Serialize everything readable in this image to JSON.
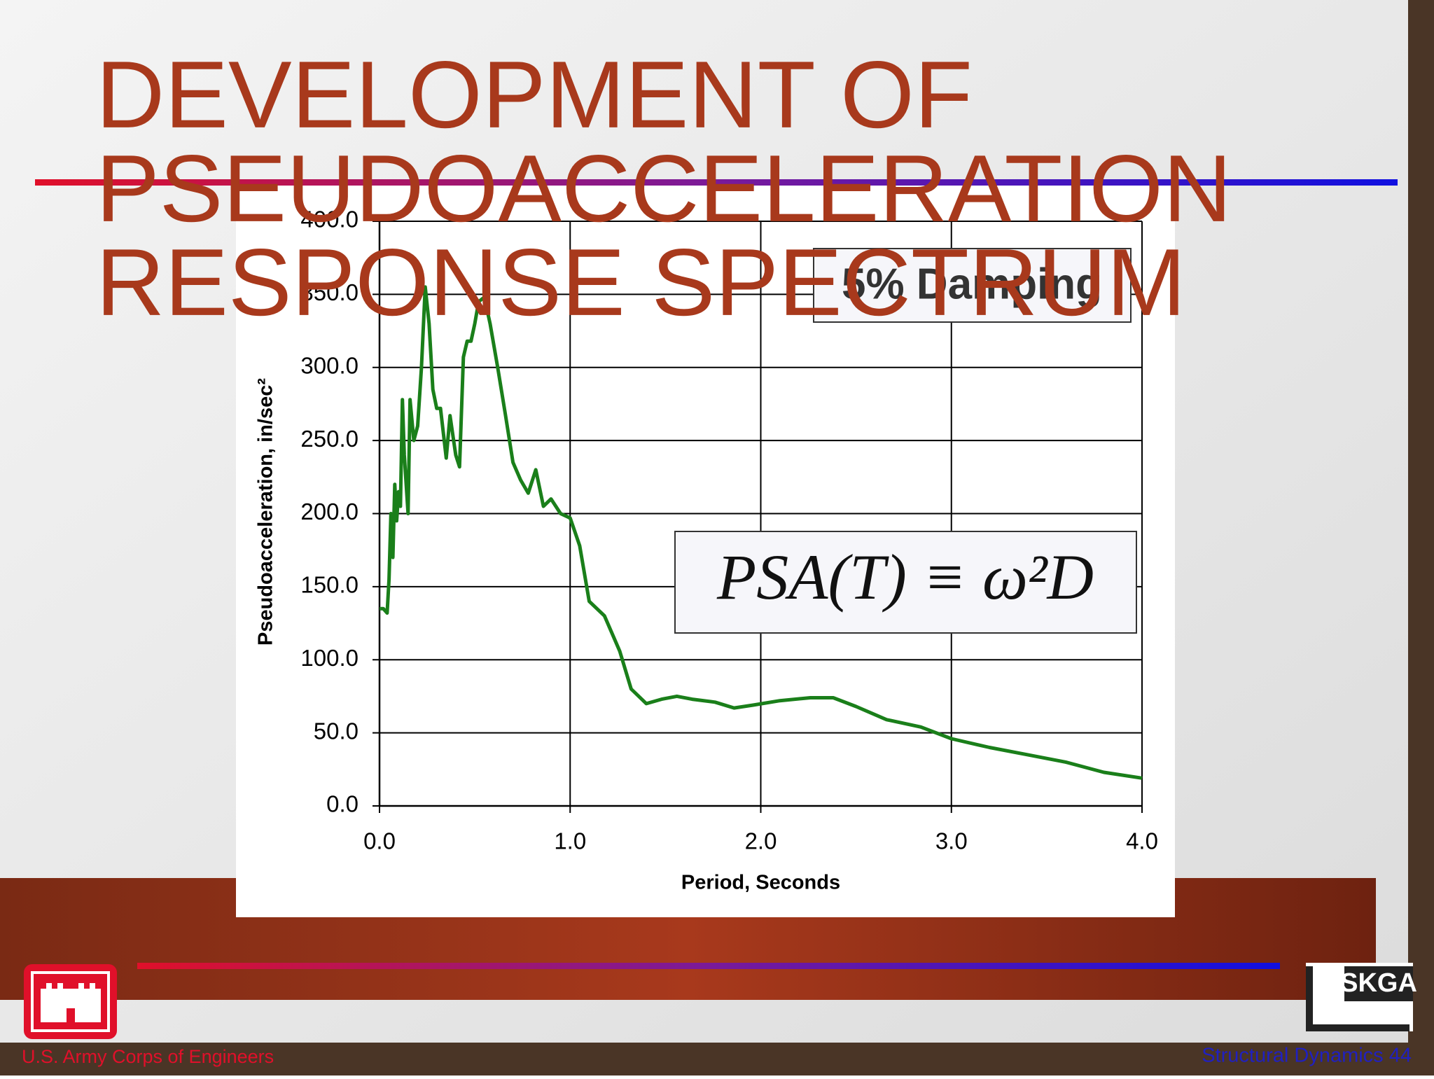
{
  "slide": {
    "title": [
      "DEVELOPMENT OF",
      "PSEUDOACCELERATION",
      "RESPONSE SPECTRUM"
    ],
    "footer_left": "U.S. Army Corps of Engineers",
    "footer_right": "Structural Dynamics 44",
    "logo_text": "SKGA"
  },
  "chart_data": {
    "type": "line",
    "x_label": "Period, Seconds",
    "y_label": "Pseudoacceleration, in/sec²",
    "annotations": [
      "5% Damping",
      "PSA(T) ≡ ω²D"
    ],
    "x": [
      0.0,
      0.02,
      0.04,
      0.05,
      0.06,
      0.07,
      0.08,
      0.09,
      0.1,
      0.11,
      0.12,
      0.13,
      0.15,
      0.16,
      0.18,
      0.2,
      0.22,
      0.24,
      0.26,
      0.28,
      0.3,
      0.32,
      0.35,
      0.37,
      0.4,
      0.42,
      0.44,
      0.46,
      0.48,
      0.5,
      0.52,
      0.55,
      0.58,
      0.62,
      0.66,
      0.7,
      0.74,
      0.78,
      0.82,
      0.86,
      0.9,
      0.95,
      1.0,
      1.05,
      1.1,
      1.18,
      1.26,
      1.32,
      1.4,
      1.48,
      1.56,
      1.64,
      1.76,
      1.86,
      1.96,
      2.1,
      2.26,
      2.38,
      2.5,
      2.66,
      2.84,
      3.0,
      3.2,
      3.4,
      3.6,
      3.8,
      4.0
    ],
    "values": [
      135,
      135,
      132,
      155,
      200,
      170,
      220,
      195,
      215,
      205,
      278,
      240,
      200,
      278,
      250,
      260,
      300,
      355,
      330,
      285,
      272,
      272,
      238,
      267,
      240,
      232,
      307,
      318,
      318,
      330,
      345,
      348,
      330,
      300,
      268,
      235,
      223,
      214,
      230,
      205,
      210,
      200,
      197,
      178,
      140,
      130,
      106,
      80,
      70,
      73,
      75,
      73,
      71,
      67,
      69,
      72,
      74,
      74,
      68,
      59,
      54,
      46,
      40,
      35,
      30,
      23,
      19
    ],
    "color": "#1a7f1a",
    "xlim": [
      0,
      4
    ],
    "ylim": [
      0,
      400
    ],
    "xticks": [
      {
        "value": 0,
        "label": "0.0"
      },
      {
        "value": 1,
        "label": "1.0"
      },
      {
        "value": 2,
        "label": "2.0"
      },
      {
        "value": 3,
        "label": "3.0"
      },
      {
        "value": 4,
        "label": "4.0"
      }
    ],
    "yticks": [
      {
        "value": 0,
        "label": "0.0"
      },
      {
        "value": 50,
        "label": "50.0"
      },
      {
        "value": 100,
        "label": "100.0"
      },
      {
        "value": 150,
        "label": "150.0"
      },
      {
        "value": 200,
        "label": "200.0"
      },
      {
        "value": 250,
        "label": "250.0"
      },
      {
        "value": 300,
        "label": "300.0"
      },
      {
        "value": 350,
        "label": "350.0"
      },
      {
        "value": 400,
        "label": "400.0"
      }
    ],
    "grid": true
  }
}
